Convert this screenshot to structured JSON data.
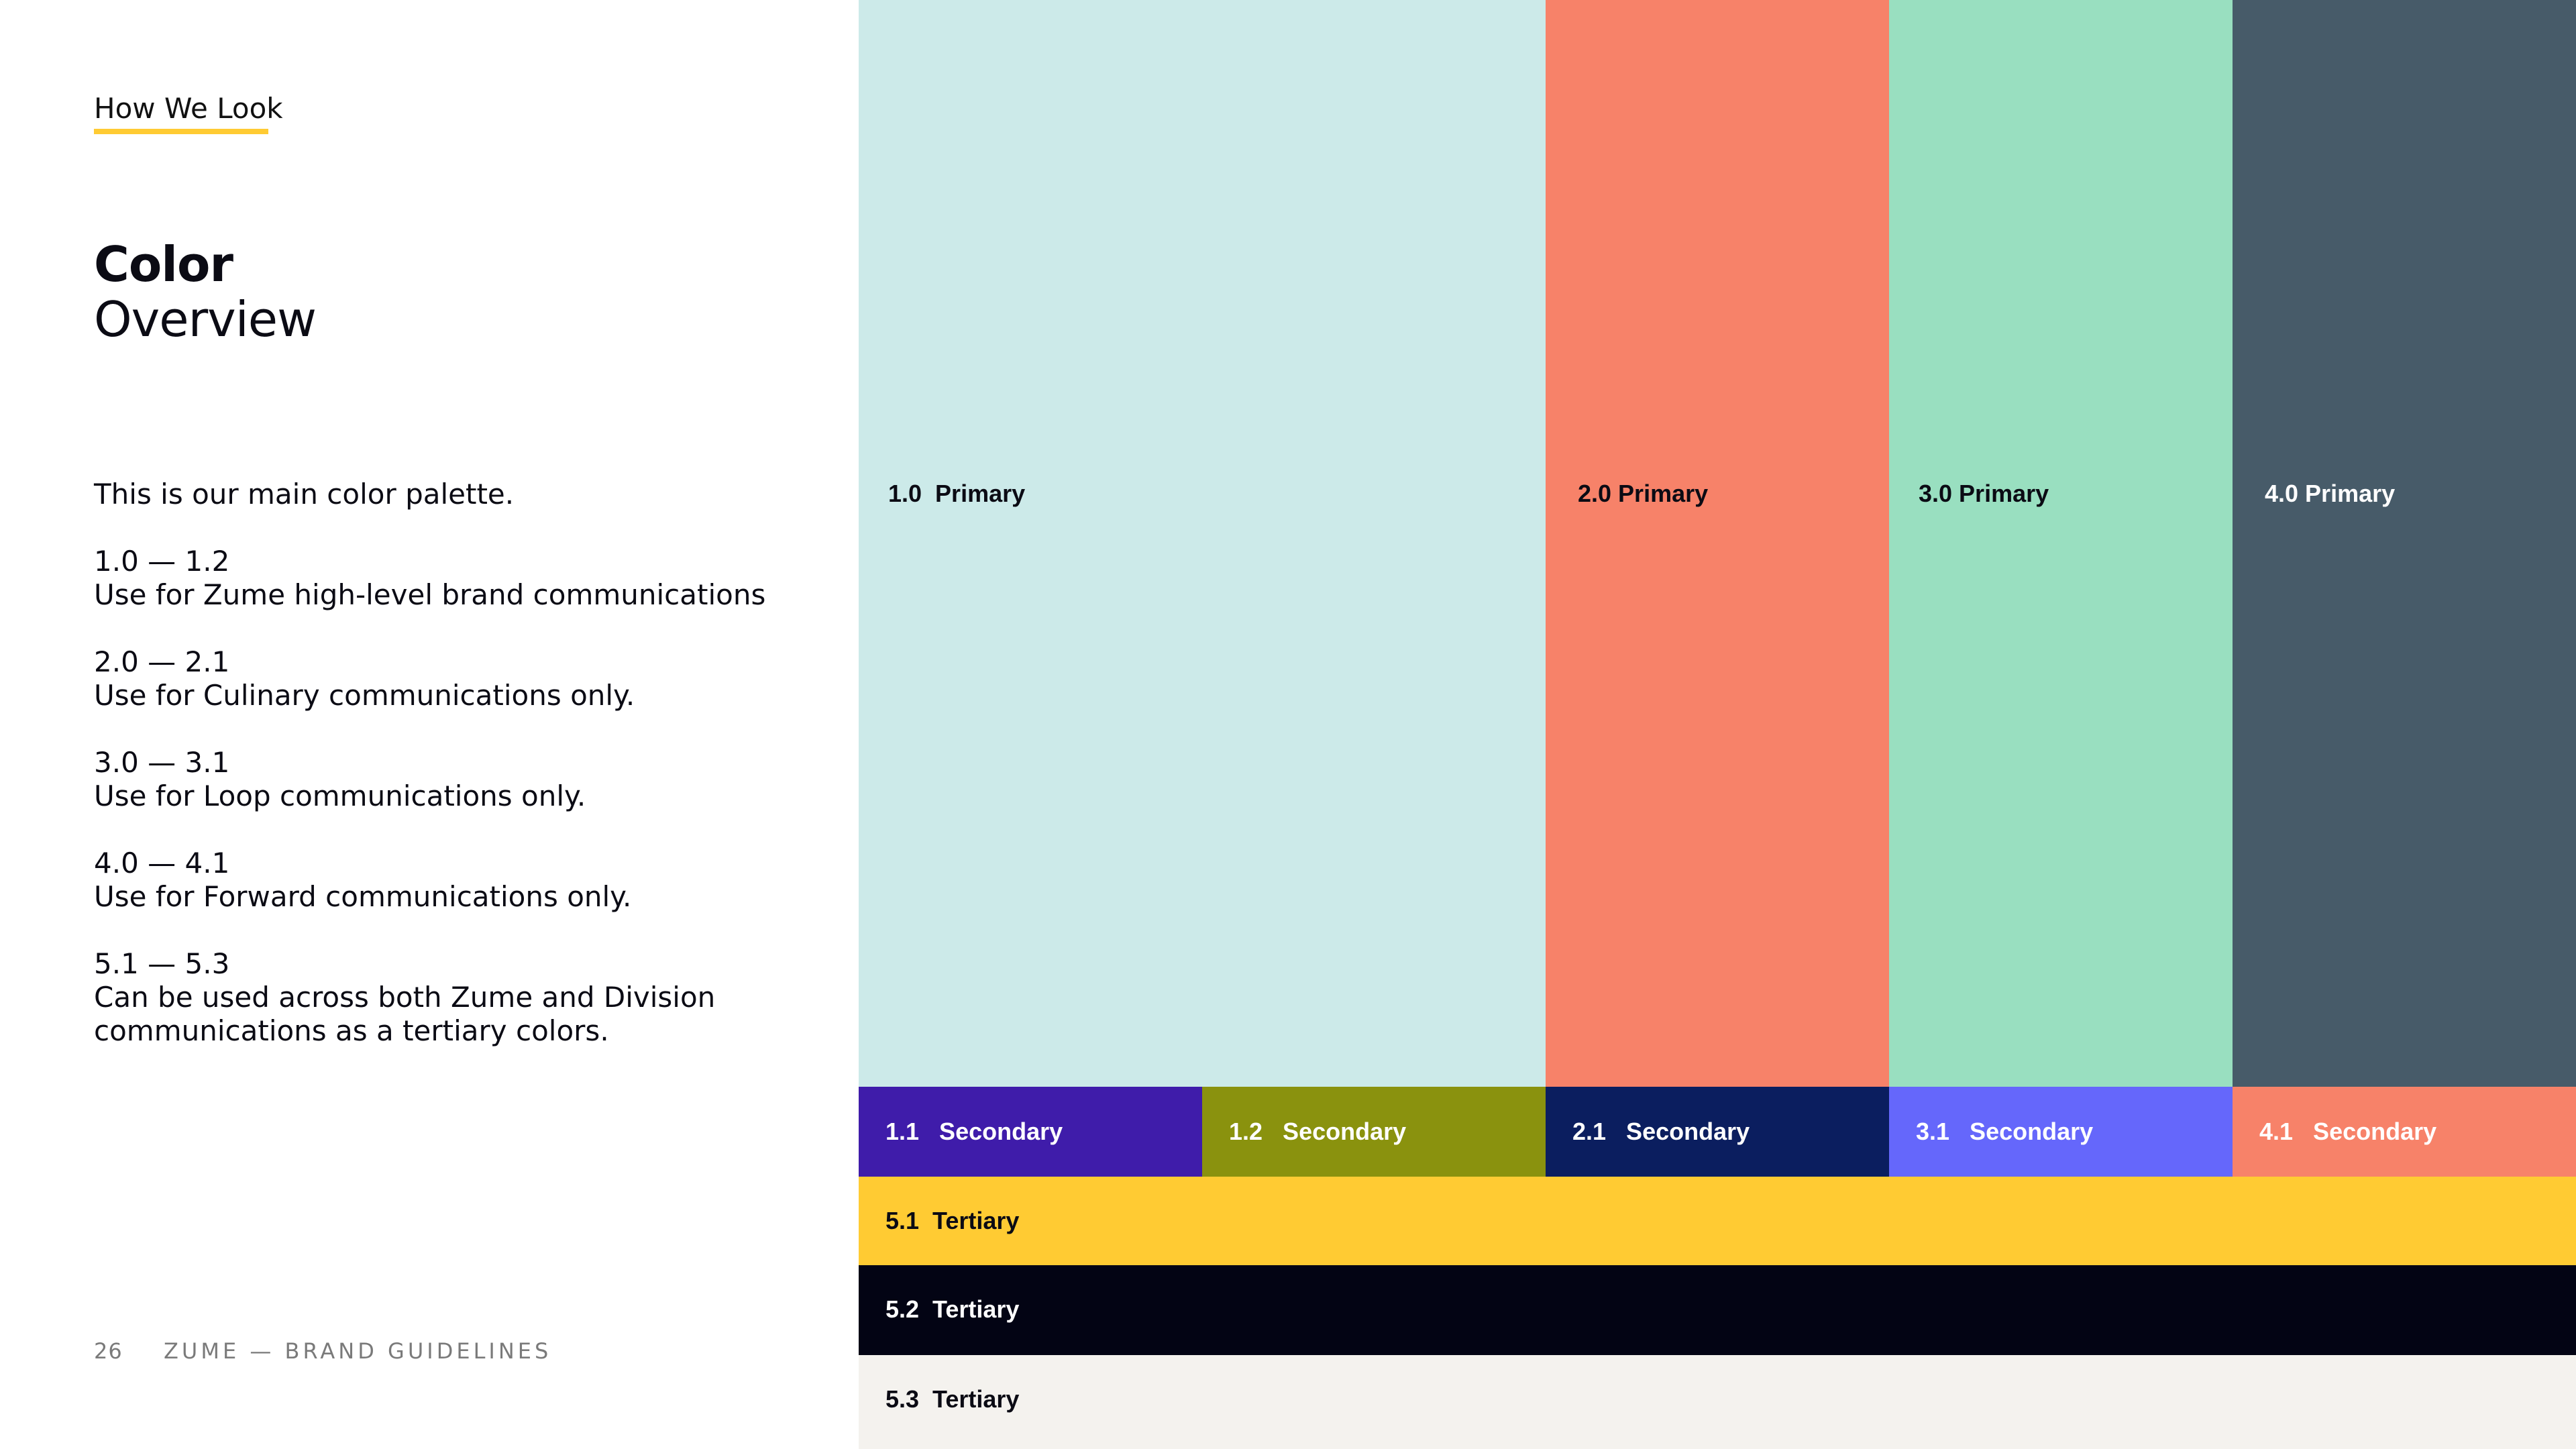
{
  "section": {
    "tag": "How We Look"
  },
  "title": {
    "bold": "Color",
    "light": "Overview"
  },
  "description": {
    "intro": "This is our main color palette.",
    "groups": [
      {
        "range": "1.0 — 1.2",
        "text": "Use for Zume high-level brand communications"
      },
      {
        "range": "2.0 — 2.1",
        "text": "Use for Culinary communications only."
      },
      {
        "range": "3.0 — 3.1",
        "text": "Use for Loop communications only."
      },
      {
        "range": "4.0 — 4.1",
        "text": "Use for Forward communications only."
      },
      {
        "range": "5.1 — 5.3",
        "text": "Can be used across both Zume and Division communications as a tertiary colors."
      }
    ]
  },
  "footer": {
    "page_number": "26",
    "text": "ZUME — BRAND GUIDELINES"
  },
  "palette": {
    "primary": [
      {
        "label": "1.0  Primary",
        "color": "#cceae9",
        "text_color": "#0b0b14"
      },
      {
        "label": "2.0 Primary",
        "color": "#f78269",
        "text_color": "#0b0b14"
      },
      {
        "label": "3.0 Primary",
        "color": "#99dfc0",
        "text_color": "#0b0b14"
      },
      {
        "label": "4.0 Primary",
        "color": "#475b69",
        "text_color": "#ffffff"
      }
    ],
    "secondary": [
      {
        "label": "1.1   Secondary",
        "color": "#3f1caa",
        "text_color": "#ffffff"
      },
      {
        "label": "1.2   Secondary",
        "color": "#8a920e",
        "text_color": "#ffffff"
      },
      {
        "label": "2.1   Secondary",
        "color": "#0b1e5f",
        "text_color": "#ffffff"
      },
      {
        "label": "3.1   Secondary",
        "color": "#6567fb",
        "text_color": "#ffffff"
      },
      {
        "label": "4.1   Secondary",
        "color": "#f78269",
        "text_color": "#ffffff"
      }
    ],
    "tertiary": [
      {
        "label": "5.1  Tertiary",
        "color": "#ffcb33",
        "text_color": "#0b0b14"
      },
      {
        "label": "5.2  Tertiary",
        "color": "#030414",
        "text_color": "#ffffff"
      },
      {
        "label": "5.3  Tertiary",
        "color": "#f4f2ee",
        "text_color": "#0b0b14"
      }
    ]
  }
}
